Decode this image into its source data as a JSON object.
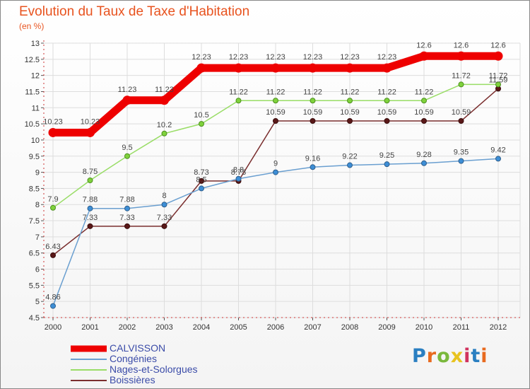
{
  "header": {
    "title": "Evolution du Taux de Taxe d'Habitation",
    "subtitle": "(en %)"
  },
  "logo": {
    "text": "Proxiti",
    "letter_colors": [
      "#2a7fc1",
      "#e86a1f",
      "#7ab83c",
      "#e8c31f",
      "#d1325e",
      "#2a7fc1",
      "#e86a1f"
    ]
  },
  "chart_data": {
    "type": "line",
    "title": "Evolution du Taux de Taxe d'Habitation",
    "subtitle": "(en %)",
    "xlabel": "",
    "ylabel": "(en %)",
    "x": [
      "2000",
      "2001",
      "2002",
      "2003",
      "2004",
      "2005",
      "2006",
      "2007",
      "2008",
      "2009",
      "2010",
      "2011",
      "2012"
    ],
    "ylim": [
      4.5,
      13
    ],
    "yticks": [
      "4.5",
      "5",
      "5.5",
      "6",
      "6.5",
      "7",
      "7.5",
      "8",
      "8.5",
      "9",
      "9.5",
      "10",
      "10.5",
      "11",
      "11.5",
      "12",
      "12.5",
      "13"
    ],
    "grid": true,
    "legend_position": "bottom-left",
    "series": [
      {
        "name": "CALVISSON",
        "color": "#ee0000",
        "values": [
          10.23,
          10.23,
          11.23,
          11.23,
          12.23,
          12.23,
          12.23,
          12.23,
          12.23,
          12.23,
          12.6,
          12.6,
          12.6
        ],
        "labels": [
          "10.23",
          "10.23",
          "11.23",
          "11.23",
          "12.23",
          "12.23",
          "12.23",
          "12.23",
          "12.23",
          "12.23",
          "12.6",
          "12.6",
          "12.6"
        ]
      },
      {
        "name": "Congénies",
        "color": "#6a9fd0",
        "values": [
          4.86,
          7.88,
          7.88,
          8,
          8.5,
          8.8,
          9,
          9.16,
          9.22,
          9.25,
          9.28,
          9.35,
          9.42
        ],
        "labels": [
          "4.86",
          "7.88",
          "7.88",
          "8",
          "8.5",
          "8.8",
          "9",
          "9.16",
          "9.22",
          "9.25",
          "9.28",
          "9.35",
          "9.42"
        ]
      },
      {
        "name": "Nages-et-Solorgues",
        "color": "#99dd66",
        "values": [
          7.9,
          8.75,
          9.5,
          10.2,
          10.5,
          11.22,
          11.22,
          11.22,
          11.22,
          11.22,
          11.22,
          11.72,
          11.72
        ],
        "labels": [
          "7.9",
          "8.75",
          "9.5",
          "10.2",
          "10.5",
          "11.22",
          "11.22",
          "11.22",
          "11.22",
          "11.22",
          "11.22",
          "11.72",
          "11.72"
        ]
      },
      {
        "name": "Boissières",
        "color": "#7a2e2e",
        "values": [
          6.43,
          7.33,
          7.33,
          7.33,
          8.73,
          8.73,
          10.59,
          10.59,
          10.59,
          10.59,
          10.59,
          10.59,
          11.59
        ],
        "labels": [
          "6.43",
          "7.33",
          "7.33",
          "7.33",
          "8.73",
          "8.73",
          "10.59",
          "10.59",
          "10.59",
          "10.59",
          "10.59",
          "10.59",
          "11.59"
        ]
      }
    ]
  }
}
